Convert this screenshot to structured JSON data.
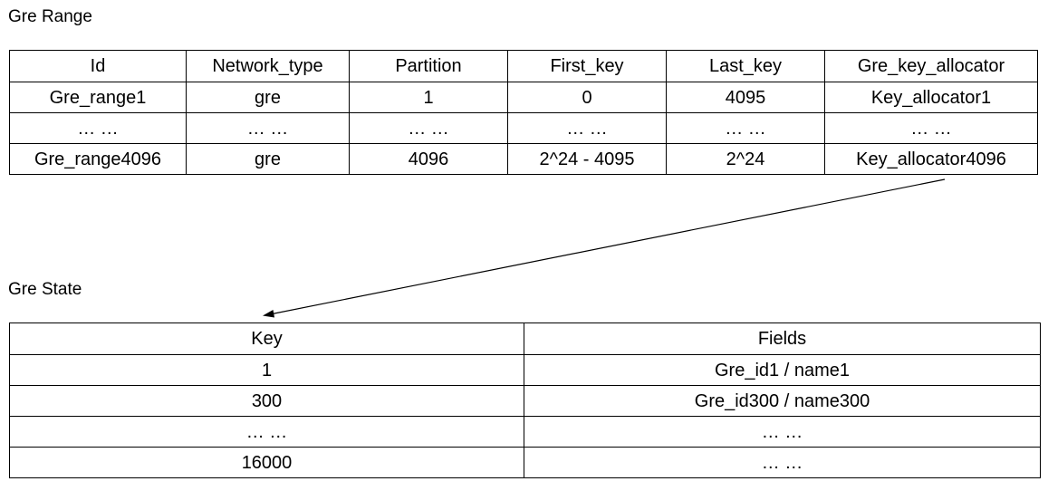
{
  "gre_range": {
    "title": "Gre Range",
    "headers": [
      "Id",
      "Network_type",
      "Partition",
      "First_key",
      "Last_key",
      "Gre_key_allocator"
    ],
    "rows": [
      [
        "Gre_range1",
        "gre",
        "1",
        "0",
        "4095",
        "Key_allocator1"
      ],
      [
        "… …",
        "… …",
        "… …",
        "… …",
        "… …",
        "… …"
      ],
      [
        "Gre_range4096",
        "gre",
        "4096",
        "2^24 - 4095",
        "2^24",
        "Key_allocator4096"
      ]
    ]
  },
  "gre_state": {
    "title": "Gre State",
    "headers": [
      "Key",
      "Fields"
    ],
    "rows": [
      [
        "1",
        "Gre_id1 / name1"
      ],
      [
        "300",
        "Gre_id300 / name300"
      ],
      [
        "… …",
        "… …"
      ],
      [
        "16000",
        "… …"
      ]
    ]
  }
}
